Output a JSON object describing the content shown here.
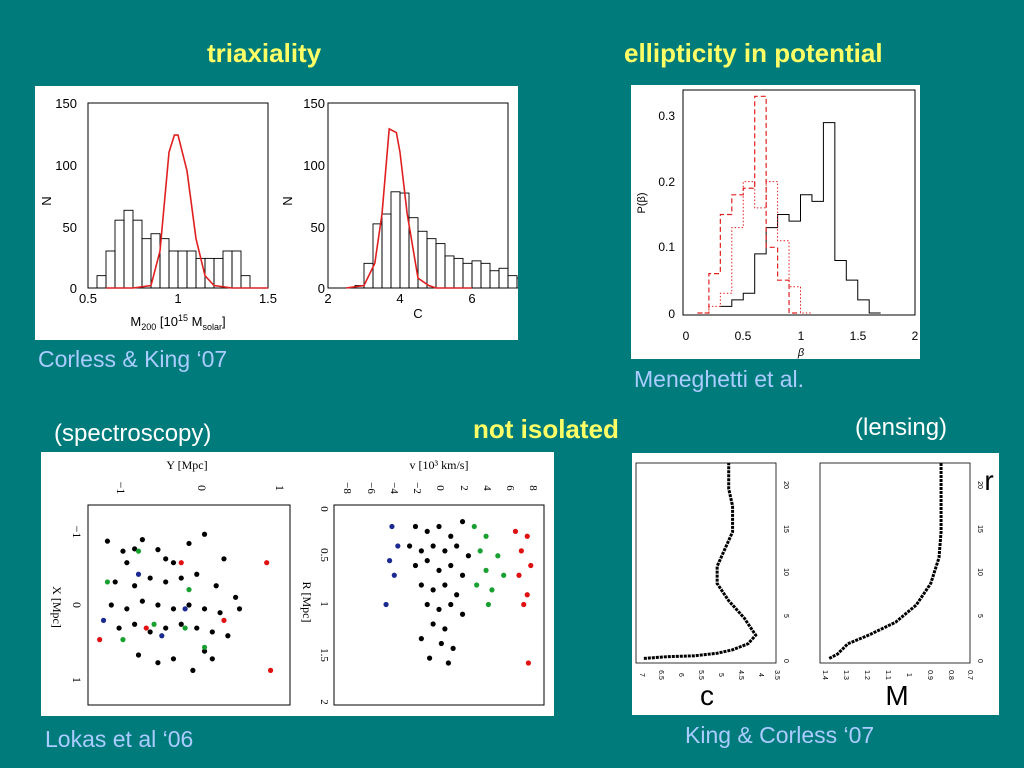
{
  "slide": {
    "heading_triaxiality": "triaxiality",
    "heading_ellipticity": "ellipticity in potential",
    "heading_not_isolated": "not isolated",
    "label_spectroscopy": "(spectroscopy)",
    "label_lensing": "(lensing)",
    "caption_corless_king": "Corless & King ‘07",
    "caption_meneghetti": "Meneghetti et al.",
    "caption_lokas": "Lokas et al ‘06",
    "caption_king_corless": "King & Corless ‘07",
    "colors": {
      "background": "#007b7b",
      "heading": "#ffff66",
      "caption": "#aaccff",
      "hist_red": "#e02020"
    }
  },
  "chart_data": [
    {
      "type": "bar",
      "panel": "corless-king-left",
      "xlabel": "M200 [10^15 Msolar]",
      "xlabel_main": "M",
      "xlabel_sub1": "200",
      "xlabel_mid": " [10",
      "xlabel_sup": "15",
      "xlabel_end": " M",
      "xlabel_sub2": "solar",
      "xlabel_close": "]",
      "ylabel": "N",
      "xlim": [
        0.5,
        1.5
      ],
      "ylim": [
        0,
        150
      ],
      "xticks": [
        "0.5",
        "1",
        "1.5"
      ],
      "yticks": [
        "0",
        "50",
        "100",
        "150"
      ],
      "histogram": {
        "bin_width": 0.05,
        "edges_start": 0.55,
        "counts": [
          10,
          30,
          55,
          63,
          55,
          40,
          44,
          40,
          30,
          30,
          30,
          24,
          24,
          24,
          30,
          30,
          10,
          0,
          0,
          0
        ]
      },
      "curve": {
        "x": [
          0.6,
          0.75,
          0.85,
          0.9,
          0.95,
          0.98,
          1.0,
          1.05,
          1.1,
          1.15,
          1.2,
          1.3,
          1.5
        ],
        "y": [
          0,
          0,
          2,
          30,
          110,
          124,
          124,
          95,
          40,
          10,
          2,
          0,
          0
        ]
      }
    },
    {
      "type": "bar",
      "panel": "corless-king-right",
      "xlabel": "C",
      "ylabel": "N",
      "xlim": [
        2,
        7
      ],
      "ylim": [
        0,
        150
      ],
      "xticks": [
        "2",
        "4",
        "6"
      ],
      "yticks": [
        "0",
        "50",
        "100",
        "150"
      ],
      "histogram": {
        "bin_width": 0.25,
        "edges_start": 2.75,
        "counts": [
          2,
          20,
          52,
          60,
          78,
          77,
          57,
          46,
          40,
          36,
          26,
          24,
          20,
          22,
          20,
          14,
          16,
          10,
          8,
          2
        ]
      },
      "curve": {
        "x": [
          2.5,
          3.0,
          3.3,
          3.5,
          3.7,
          3.9,
          4.0,
          4.2,
          4.5,
          4.8,
          5.0,
          6.0
        ],
        "y": [
          0,
          2,
          20,
          60,
          129,
          126,
          110,
          60,
          8,
          2,
          0,
          0
        ]
      }
    },
    {
      "type": "bar",
      "panel": "meneghetti",
      "xlabel": "β",
      "ylabel": "P(β)",
      "xlim": [
        0,
        2
      ],
      "ylim": [
        0,
        0.34
      ],
      "xticks": [
        "0",
        "0.5",
        "1",
        "1.5",
        "2"
      ],
      "yticks": [
        "0",
        "0.1",
        "0.2",
        "0.3"
      ],
      "series": [
        {
          "name": "black",
          "bin_width": 0.1,
          "edges_start": 0.3,
          "values": [
            0.01,
            0.02,
            0.03,
            0.09,
            0.13,
            0.15,
            0.14,
            0.18,
            0.17,
            0.29,
            0.08,
            0.05,
            0.02,
            0.0
          ]
        },
        {
          "name": "red-dashed",
          "bin_width": 0.1,
          "edges_start": 0.1,
          "values": [
            0.0,
            0.06,
            0.15,
            0.18,
            0.19,
            0.33,
            0.1,
            0.05,
            0.0
          ]
        },
        {
          "name": "red-dotted",
          "bin_width": 0.1,
          "edges_start": 0.1,
          "values": [
            0.0,
            0.01,
            0.03,
            0.13,
            0.2,
            0.16,
            0.2,
            0.11,
            0.04,
            0.0
          ]
        }
      ]
    },
    {
      "type": "scatter",
      "panel": "lokas-left",
      "xlabel": "Y [Mpc]",
      "ylabel": "X [Mpc]",
      "xlim": [
        -1.2,
        1.4
      ],
      "ylim": [
        -1.3,
        1.3
      ],
      "xticks": [
        "−1",
        "0",
        "1"
      ],
      "yticks": [
        "−1",
        "0",
        "1"
      ],
      "black": [
        [
          -0.95,
          -0.83
        ],
        [
          -0.75,
          -0.7
        ],
        [
          -0.6,
          -0.73
        ],
        [
          -0.5,
          -0.85
        ],
        [
          -0.3,
          -0.72
        ],
        [
          -0.1,
          -0.55
        ],
        [
          0.1,
          -0.8
        ],
        [
          0.3,
          -0.92
        ],
        [
          -0.85,
          -0.3
        ],
        [
          -0.6,
          -0.25
        ],
        [
          -0.4,
          -0.35
        ],
        [
          -0.2,
          -0.3
        ],
        [
          0.0,
          -0.35
        ],
        [
          0.2,
          -0.4
        ],
        [
          0.45,
          -0.25
        ],
        [
          0.7,
          -0.1
        ],
        [
          -0.9,
          0.0
        ],
        [
          -0.7,
          0.05
        ],
        [
          -0.5,
          -0.05
        ],
        [
          -0.3,
          0.0
        ],
        [
          -0.1,
          0.05
        ],
        [
          0.1,
          0.0
        ],
        [
          0.3,
          0.05
        ],
        [
          0.5,
          0.1
        ],
        [
          0.75,
          0.05
        ],
        [
          -0.8,
          0.3
        ],
        [
          -0.6,
          0.25
        ],
        [
          -0.4,
          0.35
        ],
        [
          -0.2,
          0.3
        ],
        [
          0.0,
          0.25
        ],
        [
          0.2,
          0.3
        ],
        [
          0.4,
          0.35
        ],
        [
          0.6,
          0.4
        ],
        [
          -0.55,
          0.65
        ],
        [
          -0.3,
          0.75
        ],
        [
          -0.1,
          0.7
        ],
        [
          0.15,
          0.85
        ],
        [
          0.4,
          0.7
        ],
        [
          -0.7,
          -0.55
        ],
        [
          0.55,
          -0.6
        ],
        [
          0.3,
          0.6
        ],
        [
          -0.2,
          -0.6
        ]
      ],
      "green": [
        [
          -0.95,
          -0.3
        ],
        [
          -0.75,
          0.45
        ],
        [
          -0.35,
          0.25
        ],
        [
          0.1,
          -0.2
        ],
        [
          0.3,
          0.55
        ],
        [
          -0.55,
          -0.7
        ],
        [
          0.05,
          0.3
        ]
      ],
      "blue": [
        [
          -0.55,
          -0.4
        ],
        [
          -0.25,
          0.4
        ],
        [
          0.05,
          0.05
        ],
        [
          -1.0,
          0.2
        ]
      ],
      "red": [
        [
          1.1,
          -0.55
        ],
        [
          -1.05,
          0.45
        ],
        [
          0.0,
          -0.55
        ],
        [
          0.55,
          0.2
        ],
        [
          -0.45,
          0.3
        ],
        [
          1.15,
          0.85
        ]
      ]
    },
    {
      "type": "scatter",
      "panel": "lokas-right",
      "xlabel": "v [10³ km/s]",
      "ylabel": "R [Mpc]",
      "xlim": [
        -8.5,
        8.5
      ],
      "ylim": [
        0,
        2
      ],
      "xticks": [
        "−8",
        "−6",
        "−4",
        "−2",
        "0",
        "2",
        "4",
        "6",
        "8"
      ],
      "yticks": [
        "0",
        "0.5",
        "1",
        "1.5",
        "2"
      ],
      "black": [
        [
          -2,
          0.2
        ],
        [
          -1,
          0.25
        ],
        [
          0,
          0.2
        ],
        [
          1,
          0.3
        ],
        [
          2,
          0.15
        ],
        [
          -2.5,
          0.4
        ],
        [
          -1.5,
          0.45
        ],
        [
          -0.5,
          0.4
        ],
        [
          0.5,
          0.45
        ],
        [
          1.5,
          0.4
        ],
        [
          2.5,
          0.5
        ],
        [
          -2,
          0.6
        ],
        [
          -1,
          0.55
        ],
        [
          0,
          0.65
        ],
        [
          1,
          0.6
        ],
        [
          2,
          0.7
        ],
        [
          -1.5,
          0.8
        ],
        [
          -0.5,
          0.85
        ],
        [
          0.5,
          0.8
        ],
        [
          1.5,
          0.9
        ],
        [
          -1,
          1.0
        ],
        [
          0,
          1.05
        ],
        [
          1,
          1.0
        ],
        [
          2,
          1.1
        ],
        [
          -0.5,
          1.2
        ],
        [
          0.5,
          1.25
        ],
        [
          -1.5,
          1.35
        ],
        [
          0.2,
          1.4
        ],
        [
          1.2,
          1.45
        ],
        [
          -0.8,
          1.55
        ],
        [
          0.8,
          1.6
        ]
      ],
      "green": [
        [
          3,
          0.2
        ],
        [
          4,
          0.3
        ],
        [
          3.5,
          0.45
        ],
        [
          5,
          0.5
        ],
        [
          4,
          0.65
        ],
        [
          3.2,
          0.8
        ],
        [
          4.5,
          0.85
        ],
        [
          5.5,
          0.7
        ],
        [
          4.2,
          1.0
        ]
      ],
      "blue": [
        [
          -4,
          0.2
        ],
        [
          -3.5,
          0.4
        ],
        [
          -4.2,
          0.55
        ],
        [
          -3.8,
          0.7
        ],
        [
          -4.5,
          1.0
        ]
      ],
      "red": [
        [
          6.5,
          0.25
        ],
        [
          7.5,
          0.3
        ],
        [
          7,
          0.45
        ],
        [
          7.8,
          0.6
        ],
        [
          6.8,
          0.7
        ],
        [
          7.5,
          0.9
        ],
        [
          7.2,
          1.0
        ],
        [
          7.6,
          1.6
        ]
      ]
    },
    {
      "type": "line",
      "panel": "king-corless-c",
      "xlabel": "c",
      "ylabel": "r",
      "xticks": [
        "7",
        "6.5",
        "6",
        "5.5",
        "5",
        "4.5",
        "4",
        "3.5"
      ],
      "yticks": [
        "0",
        "5",
        "10",
        "15",
        "20"
      ],
      "xlim": [
        7,
        3.5
      ],
      "ylim": [
        0,
        23
      ],
      "x": [
        6.9,
        6.3,
        5.6,
        5.0,
        4.6,
        4.2,
        4.0,
        4.3,
        4.7,
        5.0,
        5.0,
        4.8,
        4.6,
        4.6,
        4.7,
        4.7
      ],
      "y": [
        0.3,
        0.5,
        0.6,
        0.9,
        1.3,
        2.0,
        3.0,
        5.0,
        7.0,
        9.0,
        11.0,
        13.0,
        15.0,
        18.0,
        20.0,
        23.0
      ]
    },
    {
      "type": "line",
      "panel": "king-corless-m",
      "xlabel": "M",
      "ylabel": "r",
      "xticks": [
        "1.4",
        "1.3",
        "1.2",
        "1.1",
        "1",
        "0.9",
        "0.8",
        "0.7"
      ],
      "yticks": [
        "0",
        "5",
        "10",
        "15",
        "20"
      ],
      "xlim": [
        1.4,
        0.7
      ],
      "ylim": [
        0,
        23
      ],
      "x": [
        1.37,
        1.33,
        1.28,
        1.18,
        1.05,
        0.95,
        0.88,
        0.84,
        0.83,
        0.83,
        0.83
      ],
      "y": [
        0.3,
        0.8,
        2.0,
        3.0,
        4.5,
        6.5,
        9.0,
        12.0,
        15.0,
        18.0,
        23.0
      ]
    }
  ]
}
